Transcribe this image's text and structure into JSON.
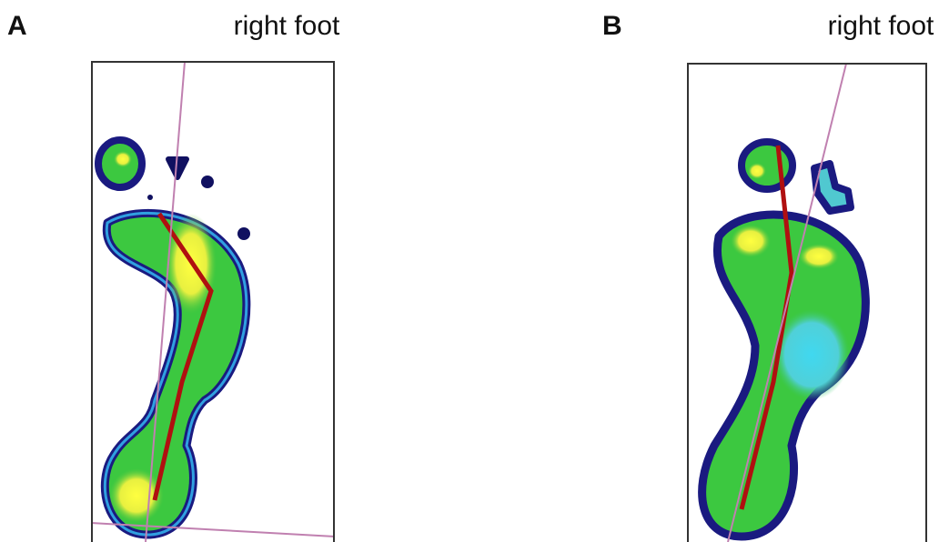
{
  "panels": [
    {
      "label": "A",
      "title": "right foot"
    },
    {
      "label": "B",
      "title": "right foot"
    }
  ]
}
